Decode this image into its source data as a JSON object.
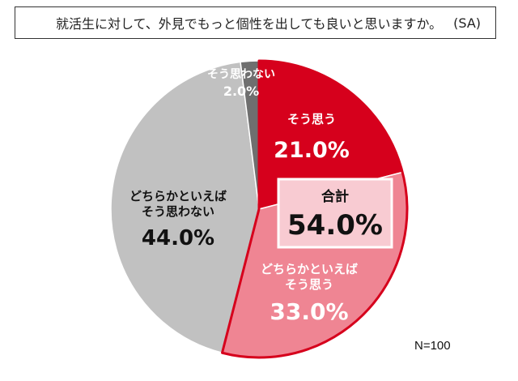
{
  "question": {
    "text": "就活生に対して、外見でもっと個性を出しても良いと思いますか。",
    "tag": "(SA)"
  },
  "chart_data": {
    "type": "pie",
    "slices": [
      {
        "label": "そう思う",
        "value": 21.0,
        "display": "21.0%",
        "color": "#d6001c",
        "text_color": "#ffffff"
      },
      {
        "label": "どちらかといえばそう思う",
        "value": 33.0,
        "display": "33.0%",
        "color": "#ef8593",
        "text_color": "#ffffff"
      },
      {
        "label": "どちらかといえばそう思わない",
        "value": 44.0,
        "display": "44.0%",
        "color": "#c1c1c1",
        "text_color": "#111111"
      },
      {
        "label": "そう思わない",
        "value": 2.0,
        "display": "2.0%",
        "color": "#6f6f6f",
        "text_color": "#ffffff"
      }
    ],
    "total_box": {
      "label": "合計",
      "value": 54.0,
      "display": "54.0%"
    },
    "highlight_color": "#d6001c",
    "n_label": "N=100"
  }
}
